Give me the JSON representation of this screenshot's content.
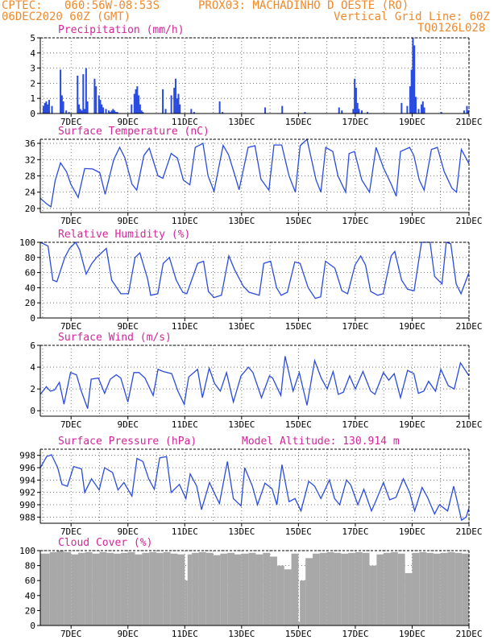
{
  "header": {
    "line1_left": "CPTEC:",
    "line1_coords": "060:56W-08:53S",
    "line1_station": "PROX03: MACHADINHO D OESTE (RO)",
    "line2_left": "06DEC2020 60Z (GMT)",
    "line2_right": "Vertical Grid Line: 60Z",
    "line3_right": "TQ0126L028"
  },
  "colors": {
    "header": "#f08a2c",
    "title": "#d4259a",
    "series": "#2a4be0",
    "bars": "#2a4be0",
    "cloud": "#a8a8a8",
    "grid": "#555555"
  },
  "x_axis": {
    "tick_labels": [
      "7DEC",
      "9DEC",
      "11DEC",
      "13DEC",
      "15DEC",
      "17DEC",
      "19DEC",
      "21DEC"
    ],
    "tick_days": [
      1,
      3,
      5,
      7,
      9,
      11,
      13,
      15
    ],
    "vertical_grid_step_days": 1,
    "range_days": [
      -0.083,
      15.0
    ]
  },
  "chart_data": [
    {
      "type": "bar",
      "title": "Precipitation (mm/h)",
      "ylim": [
        0,
        5
      ],
      "yticks": [
        0,
        1,
        2,
        3,
        4,
        5
      ],
      "grid": "dotted",
      "x_days": [
        0.0,
        0.05,
        0.1,
        0.15,
        0.2,
        0.3,
        0.6,
        0.65,
        0.7,
        0.8,
        0.9,
        1.2,
        1.25,
        1.3,
        1.35,
        1.4,
        1.45,
        1.5,
        1.55,
        1.8,
        1.85,
        1.95,
        2.0,
        2.05,
        2.1,
        2.2,
        2.3,
        2.35,
        2.4,
        2.45,
        2.5,
        2.55,
        2.6,
        3.1,
        3.2,
        3.25,
        3.3,
        3.35,
        3.4,
        3.45,
        3.5,
        4.2,
        4.3,
        4.5,
        4.6,
        4.65,
        4.7,
        4.75,
        4.8,
        5.2,
        5.3,
        6.2,
        6.3,
        7.8,
        8.4,
        9.2,
        10.4,
        10.5,
        10.9,
        10.95,
        11.0,
        11.05,
        11.1,
        11.2,
        11.4,
        12.6,
        12.8,
        12.9,
        12.95,
        13.0,
        13.05,
        13.1,
        13.2,
        13.3,
        13.35,
        13.4,
        14.0,
        14.8,
        14.9,
        14.95
      ],
      "values": [
        0.5,
        0.7,
        0.8,
        0.6,
        0.9,
        0.5,
        2.9,
        1.2,
        0.8,
        0.2,
        0.1,
        2.5,
        0.6,
        0.3,
        0.2,
        2.6,
        0.3,
        3.0,
        0.8,
        2.3,
        1.8,
        1.2,
        0.9,
        0.6,
        0.4,
        0.3,
        0.2,
        0.1,
        0.2,
        0.3,
        0.2,
        0.1,
        0.1,
        0.6,
        1.3,
        1.6,
        1.8,
        1.2,
        0.6,
        0.2,
        0.1,
        1.6,
        0.3,
        1.2,
        1.7,
        2.3,
        1.0,
        1.3,
        0.6,
        0.3,
        0.1,
        0.8,
        0.1,
        0.4,
        0.5,
        0.1,
        0.4,
        0.2,
        0.3,
        2.3,
        1.7,
        0.7,
        0.3,
        0.2,
        0.1,
        0.7,
        0.5,
        1.8,
        2.9,
        5.0,
        4.5,
        1.1,
        0.3,
        0.6,
        0.8,
        0.4,
        0.1,
        0.2,
        0.5,
        0.2
      ]
    },
    {
      "type": "line",
      "title": "Surface Temperature (nC)",
      "ylim": [
        19,
        37
      ],
      "yticks": [
        20,
        24,
        28,
        32,
        36
      ],
      "grid": "dotted",
      "x": [
        -0.08,
        0.13,
        0.29,
        0.44,
        0.63,
        0.84,
        0.99,
        1.25,
        1.48,
        1.76,
        2.01,
        2.2,
        2.5,
        2.71,
        2.89,
        3.14,
        3.31,
        3.56,
        3.75,
        4.06,
        4.23,
        4.52,
        4.74,
        4.95,
        5.18,
        5.37,
        5.64,
        5.82,
        6.03,
        6.35,
        6.54,
        6.77,
        6.91,
        7.23,
        7.47,
        7.68,
        7.96,
        8.14,
        8.41,
        8.67,
        8.89,
        9.06,
        9.3,
        9.62,
        9.79,
        9.96,
        10.21,
        10.39,
        10.66,
        10.78,
        10.97,
        11.23,
        11.5,
        11.73,
        11.99,
        12.26,
        12.44,
        12.59,
        12.91,
        13.06,
        13.25,
        13.42,
        13.68,
        13.89,
        14.13,
        14.4,
        14.56,
        14.73,
        15.0
      ],
      "y": [
        22.5,
        21.2,
        20.4,
        26.8,
        31.2,
        29.0,
        26.0,
        22.7,
        29.8,
        29.7,
        28.8,
        23.5,
        32.0,
        35.0,
        32.5,
        26.0,
        24.5,
        33.0,
        34.8,
        28.0,
        27.4,
        33.5,
        32.4,
        27.0,
        25.8,
        35.0,
        36.0,
        28.0,
        24.2,
        35.5,
        33.2,
        28.0,
        24.6,
        35.0,
        35.4,
        27.2,
        24.5,
        35.6,
        35.6,
        28.0,
        24.0,
        35.4,
        37.0,
        27.0,
        24.0,
        35.0,
        34.0,
        28.0,
        24.0,
        33.5,
        34.0,
        27.0,
        24.0,
        35.0,
        30.0,
        26.0,
        23.0,
        34.0,
        35.0,
        33.0,
        27.0,
        24.5,
        34.5,
        35.0,
        29.0,
        25.0,
        24.0,
        34.5,
        31.0
      ]
    },
    {
      "type": "line",
      "title": "Relative Humidity (%)",
      "ylim": [
        0,
        100
      ],
      "yticks": [
        0,
        20,
        40,
        60,
        80,
        100
      ],
      "grid": "dotted",
      "x": [
        -0.08,
        0.19,
        0.36,
        0.5,
        0.78,
        0.95,
        1.16,
        1.3,
        1.53,
        1.73,
        1.9,
        2.24,
        2.43,
        2.75,
        3.02,
        3.25,
        3.42,
        3.69,
        3.8,
        4.05,
        4.24,
        4.46,
        4.7,
        4.93,
        5.07,
        5.45,
        5.66,
        5.83,
        6.03,
        6.29,
        6.55,
        6.75,
        7.06,
        7.26,
        7.62,
        7.78,
        8.02,
        8.23,
        8.39,
        8.61,
        8.87,
        9.06,
        9.34,
        9.59,
        9.78,
        9.95,
        10.28,
        10.53,
        10.73,
        10.99,
        11.19,
        11.36,
        11.54,
        11.79,
        11.98,
        12.26,
        12.39,
        12.63,
        12.84,
        13.07,
        13.33,
        13.63,
        13.79,
        14.05,
        14.2,
        14.36,
        14.55,
        14.72,
        15.0
      ],
      "y": [
        100,
        95,
        50,
        48,
        80,
        92,
        100,
        90,
        58,
        72,
        80,
        92,
        50,
        32,
        32,
        80,
        86,
        52,
        30,
        32,
        72,
        80,
        50,
        34,
        32,
        72,
        75,
        35,
        27,
        30,
        82,
        64,
        42,
        34,
        30,
        72,
        75,
        40,
        30,
        34,
        74,
        72,
        40,
        26,
        28,
        75,
        66,
        36,
        32,
        70,
        82,
        70,
        35,
        30,
        32,
        82,
        88,
        50,
        38,
        36,
        100,
        100,
        55,
        45,
        100,
        98,
        45,
        32,
        60
      ]
    },
    {
      "type": "line",
      "title": "Surface Wind (m/s)",
      "ylim": [
        -0.5,
        6
      ],
      "yticks": [
        0,
        2,
        4,
        6
      ],
      "grid": "dotted",
      "x": [
        -0.08,
        0.13,
        0.27,
        0.42,
        0.59,
        0.75,
        0.98,
        1.19,
        1.36,
        1.58,
        1.71,
        1.96,
        2.18,
        2.38,
        2.59,
        2.75,
        3.0,
        3.21,
        3.39,
        3.6,
        3.89,
        4.06,
        4.24,
        4.54,
        4.76,
        4.98,
        5.14,
        5.45,
        5.62,
        5.86,
        6.05,
        6.25,
        6.47,
        6.71,
        6.98,
        7.24,
        7.4,
        7.7,
        7.98,
        8.09,
        8.38,
        8.53,
        8.81,
        9.03,
        9.3,
        9.57,
        9.8,
        10.01,
        10.22,
        10.4,
        10.58,
        10.8,
        11.0,
        11.27,
        11.54,
        11.69,
        11.99,
        12.18,
        12.37,
        12.59,
        12.84,
        13.06,
        13.22,
        13.41,
        13.58,
        13.82,
        14.01,
        14.27,
        14.48,
        14.7,
        15.0
      ],
      "y": [
        1.5,
        2.2,
        1.8,
        1.9,
        2.6,
        0.6,
        3.5,
        3.3,
        1.8,
        0.2,
        2.9,
        3.0,
        1.6,
        2.9,
        3.3,
        3.0,
        0.8,
        3.5,
        3.5,
        3.0,
        1.4,
        3.8,
        3.6,
        3.4,
        1.8,
        0.6,
        3.1,
        3.8,
        1.2,
        3.9,
        2.5,
        1.8,
        3.5,
        0.8,
        3.2,
        4.0,
        3.5,
        1.2,
        3.2,
        3.0,
        1.4,
        5.0,
        1.8,
        3.5,
        0.5,
        4.6,
        3.0,
        2.0,
        3.6,
        1.5,
        1.7,
        3.2,
        2.0,
        3.6,
        1.8,
        1.5,
        3.5,
        2.8,
        3.4,
        1.2,
        3.7,
        3.4,
        1.6,
        1.8,
        2.7,
        1.8,
        3.8,
        2.3,
        2.0,
        4.4,
        3.2
      ]
    },
    {
      "type": "line",
      "title": "Surface Pressure (hPa)",
      "ylim": [
        987,
        999
      ],
      "yticks": [
        988,
        990,
        992,
        994,
        996,
        998
      ],
      "grid": "dotted",
      "annotation": "Model Altitude: 130.914  m",
      "x": [
        -0.08,
        0.14,
        0.31,
        0.53,
        0.68,
        0.87,
        1.09,
        1.37,
        1.48,
        1.72,
        1.99,
        2.18,
        2.46,
        2.65,
        2.86,
        3.14,
        3.32,
        3.53,
        3.73,
        3.93,
        4.12,
        4.36,
        4.52,
        4.81,
        5.04,
        5.19,
        5.42,
        5.59,
        5.87,
        6.03,
        6.22,
        6.5,
        6.71,
        6.98,
        7.11,
        7.38,
        7.56,
        7.82,
        8.07,
        8.24,
        8.42,
        8.67,
        8.88,
        9.09,
        9.36,
        9.57,
        9.79,
        10.09,
        10.27,
        10.45,
        10.69,
        10.84,
        11.09,
        11.3,
        11.57,
        11.71,
        11.99,
        12.21,
        12.43,
        12.69,
        12.91,
        13.09,
        13.35,
        13.54,
        13.79,
        13.96,
        14.25,
        14.46,
        14.74,
        14.9,
        15.0
      ],
      "y": [
        996.0,
        997.8,
        998.1,
        996.0,
        993.3,
        993.0,
        996.2,
        995.8,
        992.0,
        994.2,
        992.4,
        996.0,
        995.2,
        992.4,
        993.6,
        991.4,
        997.5,
        997.0,
        994.2,
        992.5,
        997.6,
        997.8,
        992.0,
        993.3,
        991.0,
        995.0,
        993.0,
        989.2,
        993.6,
        992.0,
        990.2,
        997.0,
        991.0,
        989.8,
        996.0,
        993.0,
        990.0,
        993.5,
        992.6,
        990.0,
        996.5,
        990.5,
        991.0,
        989.0,
        993.8,
        993.0,
        991.0,
        994.0,
        991.0,
        990.0,
        994.0,
        993.2,
        990.0,
        992.5,
        989.0,
        990.5,
        993.6,
        990.8,
        991.2,
        994.2,
        992.0,
        989.0,
        992.8,
        991.2,
        988.5,
        990.0,
        989.0,
        993.0,
        987.5,
        988.0,
        989.5
      ]
    },
    {
      "type": "bar",
      "title": "Cloud Cover (%)",
      "ylim": [
        0,
        100
      ],
      "yticks": [
        0,
        20,
        40,
        60,
        80,
        100
      ],
      "grid": "dotted",
      "x_days": [
        -0.08,
        0.25,
        0.5,
        0.75,
        1.0,
        1.25,
        1.5,
        1.75,
        2.0,
        2.25,
        2.5,
        2.75,
        3.0,
        3.25,
        3.5,
        3.75,
        4.0,
        4.25,
        4.5,
        4.75,
        5.0,
        5.1,
        5.25,
        5.5,
        5.75,
        6.0,
        6.25,
        6.5,
        6.75,
        7.0,
        7.25,
        7.5,
        7.75,
        8.0,
        8.25,
        8.5,
        8.75,
        9.0,
        9.05,
        9.25,
        9.5,
        9.75,
        10.0,
        10.25,
        10.5,
        10.75,
        11.0,
        11.25,
        11.5,
        11.75,
        12.0,
        12.25,
        12.5,
        12.75,
        13.0,
        13.25,
        13.5,
        13.75,
        14.0,
        14.25,
        14.5,
        14.75
      ],
      "values": [
        96,
        98,
        100,
        98,
        95,
        97,
        98,
        96,
        98,
        97,
        96,
        97,
        98,
        95,
        97,
        98,
        97,
        98,
        96,
        95,
        60,
        95,
        97,
        98,
        97,
        94,
        96,
        97,
        95,
        96,
        97,
        95,
        97,
        92,
        80,
        75,
        96,
        5,
        60,
        90,
        96,
        97,
        98,
        97,
        96,
        97,
        98,
        97,
        80,
        95,
        97,
        98,
        96,
        70,
        97,
        98,
        97,
        96,
        97,
        98,
        97,
        96
      ]
    }
  ]
}
